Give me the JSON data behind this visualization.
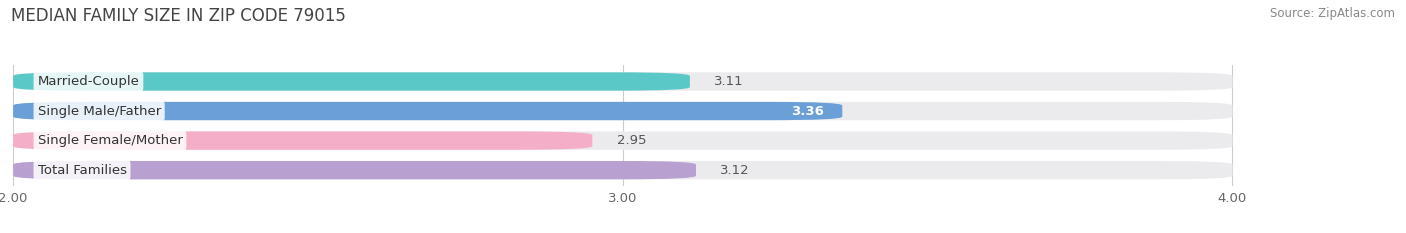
{
  "title": "MEDIAN FAMILY SIZE IN ZIP CODE 79015",
  "source": "Source: ZipAtlas.com",
  "categories": [
    "Married-Couple",
    "Single Male/Father",
    "Single Female/Mother",
    "Total Families"
  ],
  "values": [
    3.11,
    3.36,
    2.95,
    3.12
  ],
  "bar_colors": [
    "#5bc8c8",
    "#6a9fd8",
    "#f4aec8",
    "#b8a0d0"
  ],
  "xmin": 2.0,
  "xmax": 4.0,
  "xticks": [
    2.0,
    3.0,
    4.0
  ],
  "xtick_labels": [
    "2.00",
    "3.00",
    "4.00"
  ],
  "label_fontsize": 9.5,
  "title_fontsize": 12,
  "value_fontsize": 9.5,
  "bar_height": 0.62,
  "background_color": "#ffffff",
  "bar_bg_color": "#ebebee"
}
